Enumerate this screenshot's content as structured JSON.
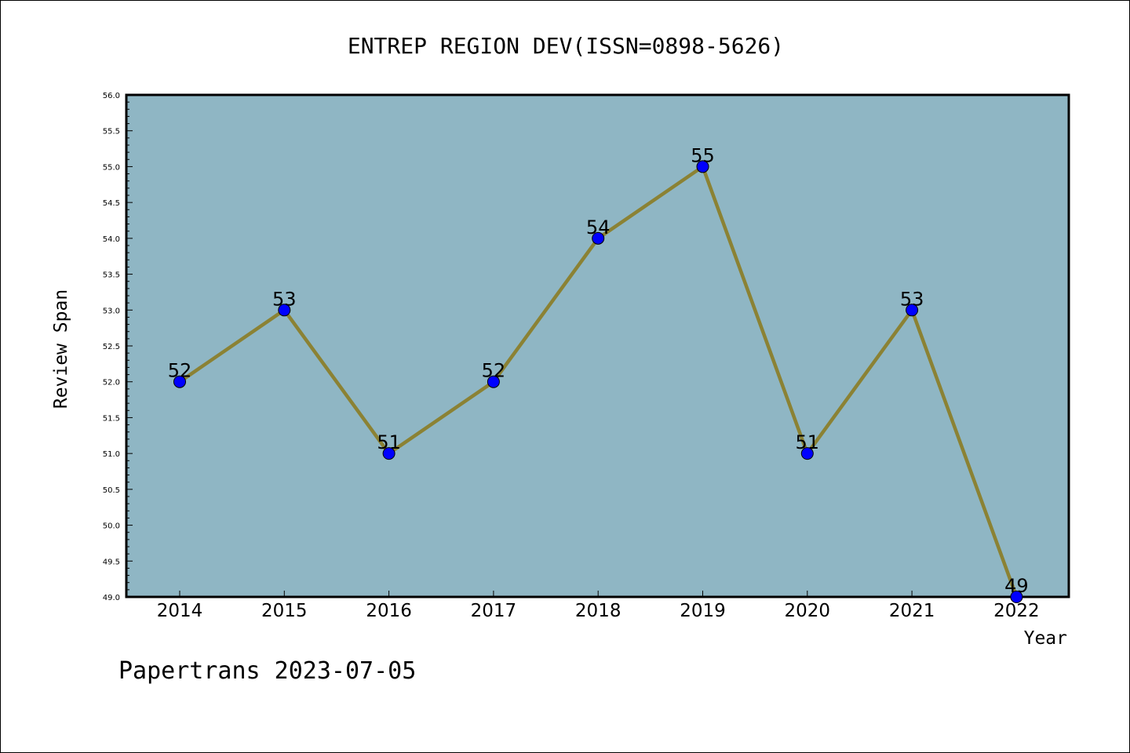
{
  "chart_data": {
    "type": "line",
    "title": "ENTREP REGION DEV(ISSN=0898-5626)",
    "xlabel": "Year",
    "ylabel": "Review Span",
    "categories": [
      "2014",
      "2015",
      "2016",
      "2017",
      "2018",
      "2019",
      "2020",
      "2021",
      "2022"
    ],
    "series": [
      {
        "values": [
          52,
          53,
          51,
          52,
          54,
          55,
          51,
          53,
          49
        ]
      }
    ],
    "data_labels": [
      "52",
      "53",
      "51",
      "52",
      "54",
      "55",
      "51",
      "53",
      "49"
    ],
    "ylim": [
      49.0,
      56.0
    ],
    "yticks": [
      "49.0",
      "49.5",
      "50.0",
      "50.5",
      "51.0",
      "51.5",
      "52.0",
      "52.5",
      "53.0",
      "53.5",
      "54.0",
      "54.5",
      "55.0",
      "55.5",
      "56.0"
    ],
    "grid": false,
    "legend": "none",
    "colors": {
      "plot_background": "#8fb6c4",
      "line": "#8b8234",
      "marker_fill": "#0000ff",
      "marker_edge": "#000000"
    }
  },
  "footer": {
    "text": "Papertrans 2023-07-05"
  }
}
